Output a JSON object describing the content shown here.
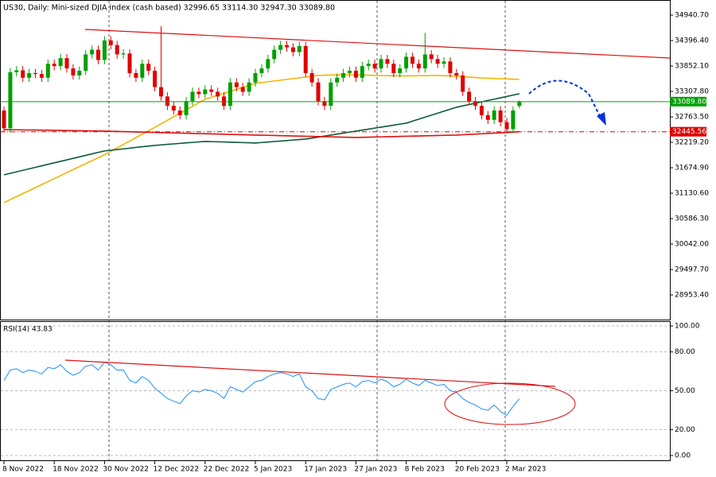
{
  "chart_data": [
    {
      "type": "candlestick",
      "title": "US30, Daily:  Mini-sized DJIA index (cash based)  32996.65 33114.30 32947.30 33089.80",
      "categories": [
        "8 Nov 2022",
        null,
        null,
        null,
        null,
        null,
        null,
        null,
        "18 Nov 2022",
        null,
        null,
        null,
        null,
        null,
        null,
        null,
        "30 Nov 2022",
        null,
        null,
        null,
        null,
        null,
        null,
        null,
        "12 Dec 2022",
        null,
        null,
        null,
        null,
        null,
        null,
        null,
        "22 Dec 2022",
        null,
        null,
        null,
        null,
        null,
        null,
        null,
        "5 Jan 2023",
        null,
        null,
        null,
        null,
        null,
        null,
        null,
        "17 Jan 2023",
        null,
        null,
        null,
        null,
        null,
        null,
        null,
        "27 Jan 2023",
        null,
        null,
        null,
        null,
        null,
        null,
        null,
        "8 Feb 2023",
        null,
        null,
        null,
        null,
        null,
        null,
        null,
        "20 Feb 2023",
        null,
        null,
        null,
        null,
        null,
        null,
        null,
        "2 Mar 2023",
        null,
        null
      ],
      "open": [
        32900,
        32520,
        33720,
        33760,
        33600,
        33700,
        33680,
        33600,
        33900,
        33850,
        34020,
        33800,
        33650,
        33750,
        34100,
        34200,
        33980,
        34400,
        34300,
        34100,
        34120,
        33700,
        33600,
        33900,
        33750,
        33400,
        33200,
        33000,
        32900,
        32800,
        33100,
        33300,
        33250,
        33350,
        33300,
        33200,
        33000,
        33500,
        33400,
        33300,
        33500,
        33700,
        33800,
        34000,
        34200,
        34300,
        34250,
        34150,
        34280,
        33700,
        33500,
        33100,
        33000,
        33500,
        33600,
        33700,
        33750,
        33600,
        33850,
        33900,
        33800,
        34000,
        33900,
        33700,
        33800,
        34050,
        33900,
        33800,
        34100,
        34000,
        33900,
        33950,
        33700,
        33650,
        33300,
        33100,
        33000,
        32800,
        32700,
        32900,
        32650,
        32500,
        32996.65
      ],
      "high": [
        32990,
        33810,
        33850,
        33850,
        33790,
        33790,
        33770,
        33990,
        33990,
        34110,
        34110,
        33890,
        33840,
        34190,
        34290,
        34290,
        34490,
        34490,
        34390,
        34210,
        34210,
        33790,
        33990,
        33990,
        33840,
        34700,
        33290,
        33090,
        32990,
        33190,
        33390,
        33390,
        33440,
        33440,
        33390,
        33290,
        33590,
        33590,
        33490,
        33590,
        33790,
        33890,
        34090,
        34290,
        34390,
        34390,
        34340,
        34370,
        34370,
        33790,
        33590,
        33190,
        33590,
        33690,
        33790,
        33840,
        33840,
        33940,
        33990,
        33990,
        34090,
        34090,
        33990,
        33890,
        34140,
        34140,
        33990,
        34560,
        34190,
        34090,
        34040,
        34040,
        33790,
        33740,
        33390,
        33190,
        33090,
        32890,
        32990,
        32990,
        32740,
        32990,
        33114.3
      ],
      "low": [
        32430,
        32430,
        33630,
        33510,
        33510,
        33590,
        33510,
        33510,
        33760,
        33760,
        33710,
        33560,
        33560,
        33660,
        34010,
        33890,
        33890,
        34210,
        34010,
        34010,
        33610,
        33510,
        33510,
        33660,
        33310,
        33110,
        32910,
        32810,
        32710,
        32710,
        33010,
        33160,
        33160,
        33210,
        33110,
        32910,
        32910,
        33310,
        33210,
        33210,
        33410,
        33610,
        33710,
        33910,
        34110,
        34160,
        34060,
        34060,
        33610,
        33410,
        33010,
        32910,
        32910,
        33410,
        33510,
        33610,
        33510,
        33510,
        33760,
        33710,
        33710,
        33810,
        33610,
        33610,
        33710,
        33810,
        33710,
        33710,
        33910,
        33810,
        33810,
        33610,
        33560,
        33210,
        33010,
        32910,
        32710,
        32610,
        32610,
        32560,
        32410,
        32410,
        32947.3
      ],
      "close": [
        32520,
        33720,
        33760,
        33600,
        33700,
        33680,
        33600,
        33900,
        33850,
        34020,
        33800,
        33650,
        33750,
        34100,
        34200,
        33980,
        34400,
        34300,
        34100,
        34120,
        33700,
        33600,
        33900,
        33750,
        33400,
        33200,
        33000,
        32900,
        32800,
        33100,
        33300,
        33250,
        33350,
        33300,
        33200,
        33000,
        33500,
        33400,
        33300,
        33500,
        33700,
        33800,
        34000,
        34200,
        34300,
        34250,
        34150,
        34280,
        33700,
        33500,
        33100,
        33000,
        33500,
        33600,
        33700,
        33750,
        33600,
        33850,
        33900,
        33800,
        34000,
        33900,
        33700,
        33800,
        34050,
        33900,
        33800,
        34100,
        34000,
        33900,
        33950,
        33700,
        33650,
        33300,
        33100,
        33000,
        32800,
        32700,
        32900,
        32650,
        32500,
        32900,
        33089.8
      ],
      "up_color": "#00a000",
      "down_color": "#e00000",
      "series": [
        {
          "color": "#f5b400",
          "values": [
            30930,
            30994,
            31058,
            31122,
            31186,
            31250,
            31314,
            31378,
            31442,
            31506,
            31570,
            31634,
            31698,
            31762,
            31826,
            31890,
            31954,
            32027,
            32100,
            32173,
            32246,
            32319,
            32392,
            32465,
            32540,
            32615,
            32690,
            32765,
            32840,
            32915,
            32990,
            33065,
            33140,
            33183,
            33225,
            33268,
            33310,
            33353,
            33395,
            33438,
            33480,
            33497,
            33514,
            33531,
            33548,
            33565,
            33582,
            33599,
            33616,
            33633,
            33650,
            33655,
            33660,
            33660,
            33665,
            33665,
            33660,
            33660,
            33655,
            33650,
            33650,
            33645,
            33645,
            33640,
            33640,
            33640,
            33645,
            33645,
            33650,
            33650,
            33645,
            33640,
            33635,
            33625,
            33615,
            33605,
            33595,
            33590,
            33585,
            33580,
            33575,
            33570,
            33565
          ]
        },
        {
          "color": "#0b5a3c",
          "values": [
            31524,
            31556,
            31588,
            31620,
            31652,
            31684,
            31716,
            31748,
            31780,
            31812,
            31844,
            31876,
            31908,
            31940,
            31972,
            32004,
            32034,
            32049,
            32064,
            32079,
            32094,
            32109,
            32124,
            32139,
            32153,
            32164,
            32175,
            32185,
            32196,
            32207,
            32217,
            32228,
            32238,
            32234,
            32230,
            32226,
            32222,
            32218,
            32213,
            32209,
            32204,
            32215,
            32225,
            32236,
            32246,
            32257,
            32268,
            32278,
            32289,
            32310,
            32331,
            32352,
            32374,
            32395,
            32416,
            32438,
            32459,
            32480,
            32501,
            32523,
            32544,
            32565,
            32586,
            32608,
            32629,
            32672,
            32714,
            32757,
            32799,
            32842,
            32884,
            32927,
            32969,
            32998,
            33027,
            33056,
            33085,
            33114,
            33142,
            33171,
            33200,
            33229,
            33258
          ]
        },
        {
          "color": "#dd1111",
          "values": [
            32491,
            32489,
            32487,
            32485,
            32483,
            32481,
            32479,
            32477,
            32475,
            32473,
            32471,
            32469,
            32467,
            32465,
            32463,
            32461,
            32459,
            32455,
            32452,
            32448,
            32445,
            32441,
            32438,
            32434,
            32431,
            32427,
            32424,
            32420,
            32417,
            32413,
            32410,
            32406,
            32403,
            32399,
            32396,
            32392,
            32389,
            32385,
            32382,
            32378,
            32374,
            32371,
            32368,
            32365,
            32361,
            32358,
            32355,
            32352,
            32349,
            32345,
            32342,
            32339,
            32336,
            32333,
            32329,
            32326,
            32323,
            32326,
            32329,
            32333,
            32336,
            32339,
            32342,
            32345,
            32349,
            32352,
            32355,
            32358,
            32361,
            32365,
            32368,
            32371,
            32374,
            32381,
            32388,
            32395,
            32402,
            32409,
            32416,
            32423,
            32430,
            32437,
            32445
          ]
        }
      ],
      "annotations": [
        {
          "value": 33089.8,
          "label": "33089.80",
          "color": "#00a000"
        },
        {
          "value": 32445.56,
          "label": "32445.56",
          "color": "#e00000"
        }
      ],
      "ylim": [
        28460,
        35179
      ],
      "yticks": [
        {
          "value": 34940.7,
          "label": "34940.70"
        },
        {
          "value": 34396.4,
          "label": "34396.40"
        },
        {
          "value": 33852.1,
          "label": "33852.10"
        },
        {
          "value": 33307.8,
          "label": "33307.80"
        },
        {
          "value": 32763.5,
          "label": "32763.50"
        },
        {
          "value": 32219.2,
          "label": "32219.20"
        },
        {
          "value": 31674.9,
          "label": "31674.90"
        },
        {
          "value": 31130.6,
          "label": "31130.60"
        },
        {
          "value": 30586.3,
          "label": "30586.30"
        },
        {
          "value": 30042,
          "label": "30042.00"
        },
        {
          "value": 29497.7,
          "label": "29497.70"
        },
        {
          "value": 28953.4,
          "label": "28953.40"
        }
      ]
    },
    {
      "type": "line",
      "title": "RSI(14) 43.83",
      "color": "#1e90ff",
      "values": [
        58,
        66,
        67,
        64,
        66,
        65,
        63,
        68,
        67,
        70,
        65,
        62,
        64,
        69,
        70,
        66,
        72,
        70,
        66,
        66,
        58,
        56,
        61,
        58,
        52,
        48,
        44,
        42,
        40,
        46,
        50,
        49,
        51,
        50,
        48,
        44,
        53,
        51,
        49,
        53,
        57,
        58,
        61,
        63,
        64,
        63,
        61,
        63,
        53,
        50,
        44,
        43,
        51,
        53,
        55,
        56,
        53,
        57,
        58,
        56,
        59,
        57,
        53,
        55,
        59,
        56,
        54,
        58,
        56,
        54,
        55,
        50,
        49,
        44,
        41,
        39,
        36,
        35,
        39,
        34,
        31,
        38,
        43.83
      ],
      "ylim": [
        -4.3,
        103.1
      ],
      "yticks": [
        {
          "value": 100,
          "label": "100.00"
        },
        {
          "value": 80,
          "label": "80.00"
        },
        {
          "value": 50,
          "label": "50.00"
        },
        {
          "value": 20,
          "label": "20.00"
        },
        {
          "value": 0,
          "label": "0.00"
        }
      ],
      "grid": true
    }
  ]
}
